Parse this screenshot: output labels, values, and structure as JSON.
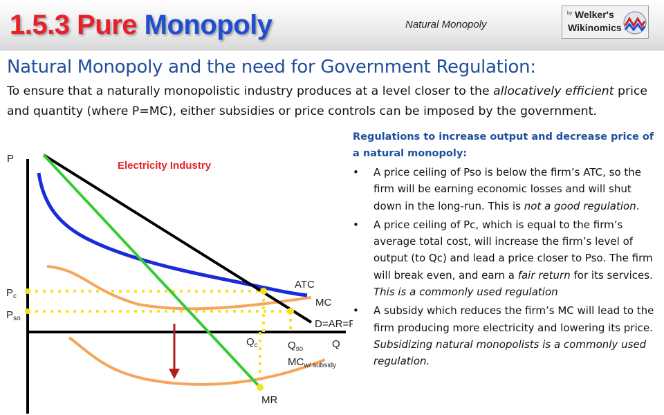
{
  "header": {
    "title_red": "1.5.3 Pure",
    "title_blue": "Monopoly",
    "topic": "Natural Monopoly",
    "logo": {
      "by": "by",
      "line1": "Welker's",
      "line2": "Wikinomics"
    }
  },
  "heading": "Natural Monopoly and the need for Government Regulation:",
  "intro": {
    "part1": "To ensure that a naturally monopolistic industry produces at a level closer to the ",
    "emphasis": "allocatively efficient",
    "part2": " price and quantity (where P=MC), either subsidies or price controls can be imposed by the government."
  },
  "diagram": {
    "title": "Electricity Industry",
    "y_axis_label": "P",
    "x_axis_label": "Q",
    "labels": {
      "pc": "P",
      "pc_sub": "c",
      "pso": "P",
      "pso_sub": "so",
      "qc": "Q",
      "qc_sub": "c",
      "qso": "Q",
      "qso_sub": "so",
      "atc": "ATC",
      "mc": "MC",
      "demand": "D=AR=P",
      "mc_subsidy": "MC",
      "mc_subsidy_sub": "w/ subsidy",
      "mr": "MR"
    },
    "colors": {
      "demand": "#000000",
      "mr": "#33cc33",
      "atc": "#1a2bd8",
      "mc": "#f5a55c",
      "guides": "#f5e21c",
      "arrow": "#b21e1e",
      "title": "#e8202a"
    }
  },
  "regulations": {
    "title": "Regulations to increase output and decrease price of a natural monopoly:",
    "bullet1_a": "A price ceiling of Pso is below the firm’s ATC, so the firm will be earning economic losses and will shut down in the long-run. This is ",
    "bullet1_em": "not a good regulation",
    "bullet1_b": ".",
    "bullet2_a": "A price ceiling of Pc, which is equal to the firm’s average total cost, will increase the firm’s level of output (to Qc) and lead a price closer to Pso. The firm will break even, and earn a ",
    "bullet2_em1": "fair return",
    "bullet2_b": " for its services. ",
    "bullet2_em2": "This is a commonly used regulation",
    "bullet3_a": "A subsidy which reduces the firm’s MC will lead to the firm producing more electricity and lowering its price. ",
    "bullet3_em": "Subsidizing natural monopolists is a commonly used regulation."
  }
}
